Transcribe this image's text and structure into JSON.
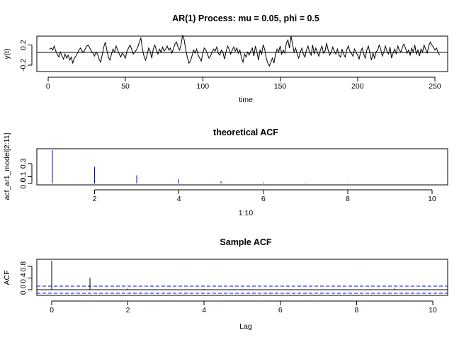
{
  "chart_data": [
    {
      "type": "line",
      "title": "AR(1) Process: mu = 0.05, phi = 0.5",
      "xlabel": "time",
      "ylabel": "y(t)",
      "xlim": [
        1,
        250
      ],
      "ylim": [
        -0.3,
        0.35
      ],
      "x_ticks": [
        0,
        50,
        100,
        150,
        200,
        250
      ],
      "y_ticks": [
        -0.2,
        0.2
      ],
      "y_tick_labels": [
        "-0.2",
        "0.2"
      ],
      "reference_line_y": 0.05,
      "grid": false,
      "series": [
        {
          "color": "#000000",
          "x_start": 1,
          "values": [
            0.12,
            0.14,
            0.1,
            0.18,
            0.08,
            0.02,
            -0.04,
            0.06,
            -0.02,
            -0.08,
            0.02,
            -0.06,
            0.0,
            -0.1,
            -0.04,
            -0.16,
            -0.06,
            -0.02,
            0.04,
            0.1,
            0.14,
            0.08,
            0.06,
            0.12,
            0.18,
            0.2,
            0.14,
            0.08,
            0.04,
            -0.02,
            0.06,
            0.02,
            -0.08,
            -0.14,
            0.0,
            0.16,
            0.26,
            0.1,
            -0.04,
            -0.1,
            0.02,
            0.12,
            0.06,
            0.18,
            0.1,
            0.02,
            -0.04,
            0.04,
            0.0,
            -0.06,
            0.08,
            0.14,
            0.2,
            0.12,
            0.02,
            0.06,
            0.1,
            0.16,
            0.26,
            0.34,
            0.12,
            -0.02,
            -0.1,
            0.0,
            0.14,
            0.08,
            -0.06,
            0.12,
            0.2,
            0.1,
            0.02,
            0.12,
            0.06,
            0.16,
            0.08,
            0.12,
            0.18,
            0.1,
            0.14,
            0.04,
            0.12,
            0.22,
            0.26,
            0.16,
            0.1,
            0.22,
            0.4,
            0.3,
            0.1,
            -0.04,
            -0.16,
            -0.12,
            -0.02,
            0.1,
            0.04,
            0.12,
            0.0,
            -0.06,
            -0.12,
            0.04,
            0.14,
            0.1,
            0.02,
            -0.06,
            -0.02,
            0.06,
            0.12,
            0.08,
            0.16,
            0.04,
            0.0,
            0.1,
            0.06,
            -0.08,
            0.06,
            0.18,
            0.12,
            0.02,
            0.1,
            0.16,
            0.08,
            0.14,
            0.04,
            0.1,
            -0.06,
            -0.14,
            0.02,
            -0.04,
            0.06,
            0.0,
            0.08,
            0.14,
            -0.02,
            0.18,
            0.06,
            -0.1,
            0.1,
            0.02,
            0.2,
            0.12,
            -0.06,
            -0.16,
            -0.22,
            -0.14,
            -0.06,
            -0.16,
            0.02,
            0.12,
            0.06,
            0.18,
            0.02,
            0.1,
            0.04,
            0.24,
            0.3,
            0.14,
            0.38,
            0.22,
            0.06,
            0.14,
            0.02,
            -0.06,
            0.06,
            0.14,
            0.02,
            -0.04,
            0.1,
            0.18,
            0.06,
            0.0,
            0.2,
            0.02,
            0.14,
            0.06,
            -0.02,
            0.1,
            0.18,
            0.04,
            0.08,
            0.24,
            0.1,
            0.0,
            0.06,
            0.16,
            0.08,
            0.02,
            0.12,
            0.0,
            -0.04,
            0.12,
            0.02,
            -0.04,
            0.1,
            0.18,
            0.08,
            0.04,
            -0.02,
            0.12,
            0.06,
            0.0,
            -0.08,
            0.06,
            0.14,
            0.02,
            -0.06,
            0.1,
            0.18,
            0.04,
            -0.1,
            0.04,
            -0.06,
            0.06,
            0.1,
            0.2,
            0.12,
            -0.02,
            0.06,
            0.18,
            0.08,
            0.02,
            0.16,
            -0.06,
            0.04,
            0.12,
            0.02,
            0.18,
            0.1,
            0.06,
            0.16,
            0.22,
            0.14,
            0.04,
            0.1,
            0.0,
            0.14,
            0.06,
            0.2,
            0.02,
            0.1,
            -0.02,
            0.12,
            0.06,
            0.2,
            0.12,
            0.04,
            0.18,
            0.26,
            0.2,
            0.16,
            0.1,
            0.14,
            0.06,
            0.0
          ]
        }
      ]
    },
    {
      "type": "bar",
      "title": "theoretical ACF",
      "xlabel": "1:10",
      "ylabel": "acf_ar1_model[2:11]",
      "xlim": [
        1,
        10
      ],
      "ylim": [
        0,
        0.5
      ],
      "x_ticks": [
        2,
        4,
        6,
        8,
        10
      ],
      "y_ticks": [
        0.0,
        0.1,
        0.3
      ],
      "y_tick_labels": [
        "0.0",
        "0.1",
        "0.3"
      ],
      "grid": false,
      "series": [
        {
          "color": "#0000ff",
          "x": [
            1,
            2,
            3,
            4,
            5,
            6,
            7,
            8,
            9,
            10
          ],
          "values": [
            0.5,
            0.25,
            0.125,
            0.0625,
            0.03125,
            0.015625,
            0.0078125,
            0.00390625,
            0.001953125,
            0.0009765625
          ]
        }
      ]
    },
    {
      "type": "bar",
      "title": "Sample ACF",
      "xlabel": "Lag",
      "ylabel": "ACF",
      "xlim": [
        0,
        10
      ],
      "ylim": [
        -0.15,
        1.0
      ],
      "x_ticks": [
        0,
        2,
        4,
        6,
        8,
        10
      ],
      "y_ticks": [
        0.0,
        0.4,
        0.8
      ],
      "y_tick_labels": [
        "0.0",
        "0.4",
        "0.8"
      ],
      "ci": [
        0.124,
        -0.124
      ],
      "grid": false,
      "series": [
        {
          "color": "#000000",
          "x": [
            0,
            1,
            2,
            3,
            4,
            5,
            6,
            7,
            8,
            9,
            10
          ],
          "values": [
            1.0,
            0.41,
            0.03,
            -0.01,
            0.02,
            -0.03,
            0.01,
            0.0,
            -0.02,
            0.03,
            -0.01
          ]
        }
      ]
    }
  ]
}
